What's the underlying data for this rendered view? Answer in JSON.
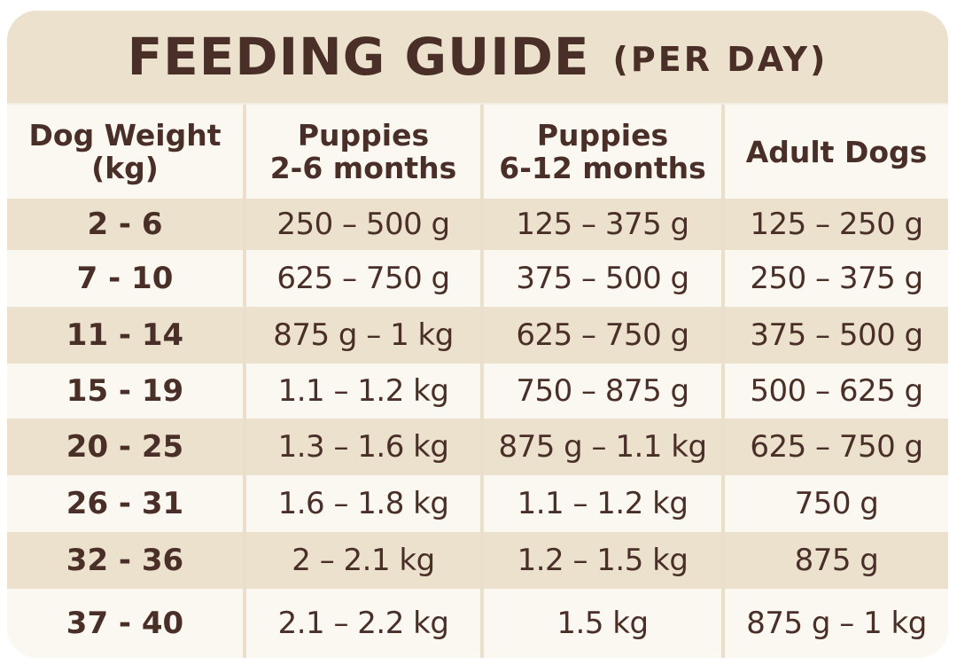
{
  "title": {
    "main": "FEEDING GUIDE",
    "sub": "(PER DAY)"
  },
  "table": {
    "headers": [
      {
        "line1": "Dog Weight",
        "line2": "(kg)"
      },
      {
        "line1": "Puppies",
        "line2": "2-6 months"
      },
      {
        "line1": "Puppies",
        "line2": "6-12 months"
      },
      {
        "line1": "Adult Dogs",
        "line2": ""
      }
    ],
    "rows": [
      [
        "2 - 6",
        "250 – 500 g",
        "125 – 375 g",
        "125 – 250 g"
      ],
      [
        "7 - 10",
        "625 – 750 g",
        "375 – 500 g",
        "250 – 375 g"
      ],
      [
        "11 - 14",
        "875 g – 1 kg",
        "625 – 750 g",
        "375 – 500 g"
      ],
      [
        "15 - 19",
        "1.1 – 1.2 kg",
        "750 – 875 g",
        "500 – 625 g"
      ],
      [
        "20 - 25",
        "1.3 – 1.6 kg",
        "875 g – 1.1 kg",
        "625 – 750 g"
      ],
      [
        "26 - 31",
        "1.6 – 1.8 kg",
        "1.1 – 1.2 kg",
        "750 g"
      ],
      [
        "32 - 36",
        "2 – 2.1 kg",
        "1.2 – 1.5 kg",
        "875 g"
      ],
      [
        "37 - 40",
        "2.1 – 2.2 kg",
        "1.5 kg",
        "875 g – 1 kg"
      ]
    ]
  },
  "colors": {
    "text": "#4a2f28",
    "band": "#ebe1cd",
    "light": "#fbf8f2",
    "card": "#f4ede1"
  }
}
